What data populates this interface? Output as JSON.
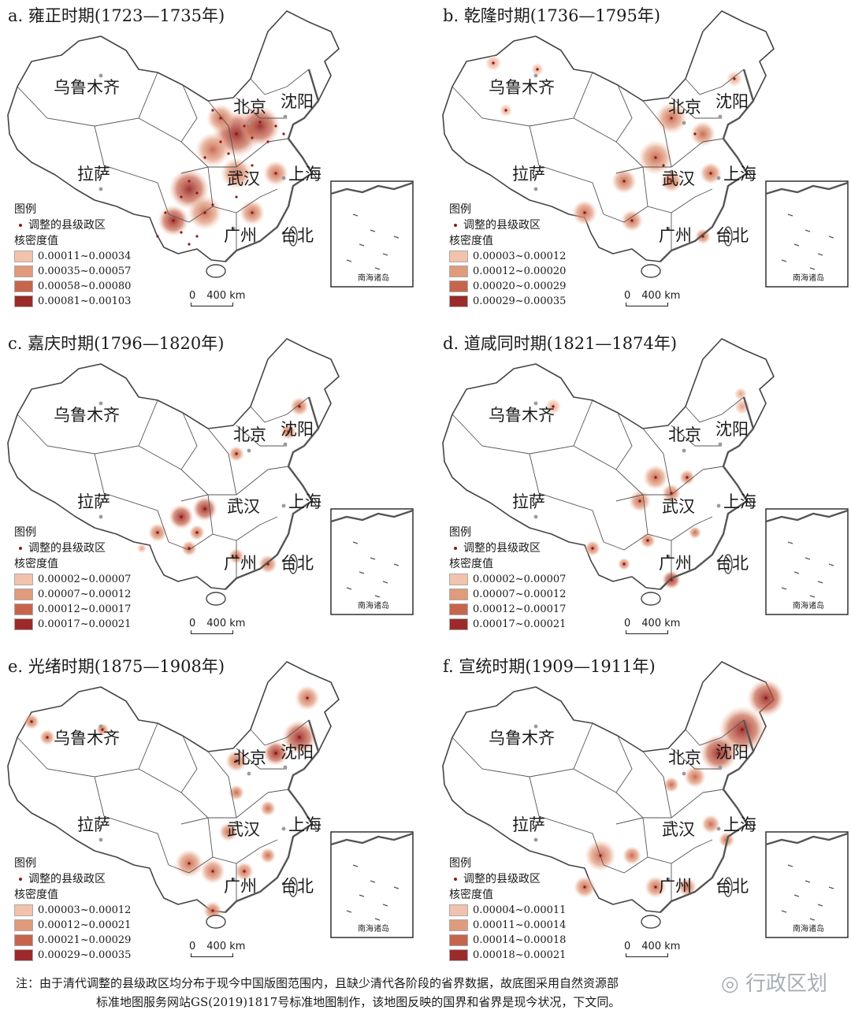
{
  "colors": {
    "point": "#8b1a1a",
    "class1": "#f2c2ac",
    "class2": "#e09a7c",
    "class3": "#c6654c",
    "class4": "#9c2a2a"
  },
  "cities": {
    "urumqi": "乌鲁木齐",
    "beijing": "北京",
    "shenyang": "沈阳",
    "lhasa": "拉萨",
    "wuhan": "武汉",
    "shanghai": "上海",
    "guangzhou": "广州",
    "taipei": "台北"
  },
  "inset_label": "南海诸岛",
  "legend": {
    "title": "图例",
    "point_label": "调整的县级政区",
    "density_label": "核密度值"
  },
  "scale": {
    "zero": "0",
    "distance": "400 km"
  },
  "panels": [
    {
      "title": "a. 雍正时期(1723—1735年)",
      "classes": [
        "0.00011~0.00034",
        "0.00035~0.00057",
        "0.00058~0.00080",
        "0.00081~0.00103"
      ]
    },
    {
      "title": "b. 乾隆时期(1736—1795年)",
      "classes": [
        "0.00003~0.00012",
        "0.00012~0.00020",
        "0.00020~0.00029",
        "0.00029~0.00035"
      ]
    },
    {
      "title": "c. 嘉庆时期(1796—1820年)",
      "classes": [
        "0.00002~0.00007",
        "0.00007~0.00012",
        "0.00012~0.00017",
        "0.00017~0.00021"
      ]
    },
    {
      "title": "d. 道咸同时期(1821—1874年)",
      "classes": [
        "0.00002~0.00007",
        "0.00007~0.00012",
        "0.00012~0.00017",
        "0.00017~0.00021"
      ]
    },
    {
      "title": "e. 光绪时期(1875—1908年)",
      "classes": [
        "0.00003~0.00012",
        "0.00012~0.00021",
        "0.00021~0.00029",
        "0.00029~0.00035"
      ]
    },
    {
      "title": "f. 宣统时期(1909—1911年)",
      "classes": [
        "0.00004~0.00011",
        "0.00011~0.00014",
        "0.00014~0.00018",
        "0.00018~0.00021"
      ]
    }
  ],
  "note": {
    "line1": "注：由于清代调整的县级政区均分布于现今中国版图范围内，且缺少清代各阶段的省界数据，故底图采用自然资源部",
    "line2": "标准地图服务网站GS(2019)1817号标准地图制作，该地图反映的国界和省界是现今状况，下文同。"
  },
  "watermark": "行政区划"
}
